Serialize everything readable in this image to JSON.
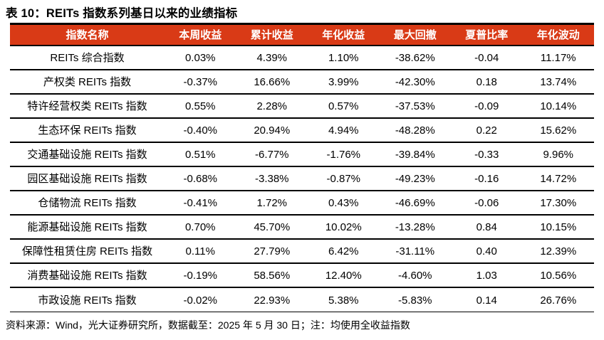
{
  "title": "表 10：REITs 指数系列基日以来的业绩指标",
  "colors": {
    "header_bg": "#D93A16",
    "header_text": "#FFFFFF",
    "border": "#000000",
    "body_text": "#000000"
  },
  "table": {
    "headers": [
      "指数名称",
      "本周收益",
      "累计收益",
      "年化收益",
      "最大回撤",
      "夏普比率",
      "年化波动"
    ],
    "rows": [
      [
        "REITs 综合指数",
        "0.03%",
        "4.39%",
        "1.10%",
        "-38.62%",
        "-0.04",
        "11.17%"
      ],
      [
        "产权类 REITs 指数",
        "-0.37%",
        "16.66%",
        "3.99%",
        "-42.30%",
        "0.18",
        "13.74%"
      ],
      [
        "特许经营权类 REITs 指数",
        "0.55%",
        "2.28%",
        "0.57%",
        "-37.53%",
        "-0.09",
        "10.14%"
      ],
      [
        "生态环保 REITs 指数",
        "-0.40%",
        "20.94%",
        "4.94%",
        "-48.28%",
        "0.22",
        "15.62%"
      ],
      [
        "交通基础设施 REITs 指数",
        "0.51%",
        "-6.77%",
        "-1.76%",
        "-39.84%",
        "-0.33",
        "9.96%"
      ],
      [
        "园区基础设施 REITs 指数",
        "-0.68%",
        "-3.38%",
        "-0.87%",
        "-49.23%",
        "-0.16",
        "14.72%"
      ],
      [
        "仓储物流 REITs 指数",
        "-0.41%",
        "1.72%",
        "0.43%",
        "-46.69%",
        "-0.06",
        "17.30%"
      ],
      [
        "能源基础设施 REITs 指数",
        "0.70%",
        "45.70%",
        "10.02%",
        "-13.28%",
        "0.84",
        "10.15%"
      ],
      [
        "保障性租赁住房 REITs 指数",
        "0.11%",
        "27.79%",
        "6.42%",
        "-31.11%",
        "0.40",
        "12.39%"
      ],
      [
        "消费基础设施 REITs 指数",
        "-0.19%",
        "58.56%",
        "12.40%",
        "-4.60%",
        "1.03",
        "10.56%"
      ],
      [
        "市政设施 REITs 指数",
        "-0.02%",
        "22.93%",
        "5.38%",
        "-5.83%",
        "0.14",
        "26.76%"
      ]
    ]
  },
  "footer": {
    "source_note": "资料来源：Wind，光大证券研究所，数据截至：2025 年 5 月 30 日；注：均使用全收益指数"
  }
}
